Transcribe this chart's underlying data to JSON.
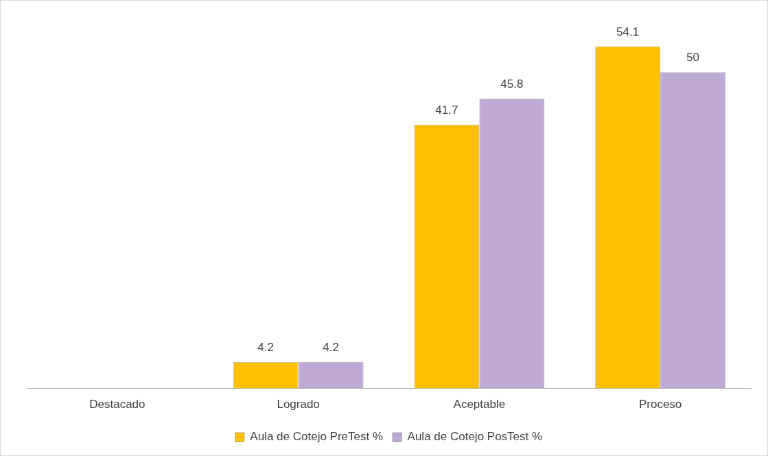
{
  "chart_data": {
    "type": "bar",
    "categories": [
      "Destacado",
      "Logrado",
      "Aceptable",
      "Proceso"
    ],
    "series": [
      {
        "name": "Aula de Cotejo PreTest %",
        "color": "#ffc000",
        "values": [
          null,
          4.2,
          41.7,
          54.1
        ]
      },
      {
        "name": "Aula de Cotejo PosTest %",
        "color": "#bfa9d6",
        "values": [
          null,
          4.2,
          45.8,
          50
        ]
      }
    ],
    "data_labels": true,
    "legend": "bottom",
    "grid": false
  }
}
